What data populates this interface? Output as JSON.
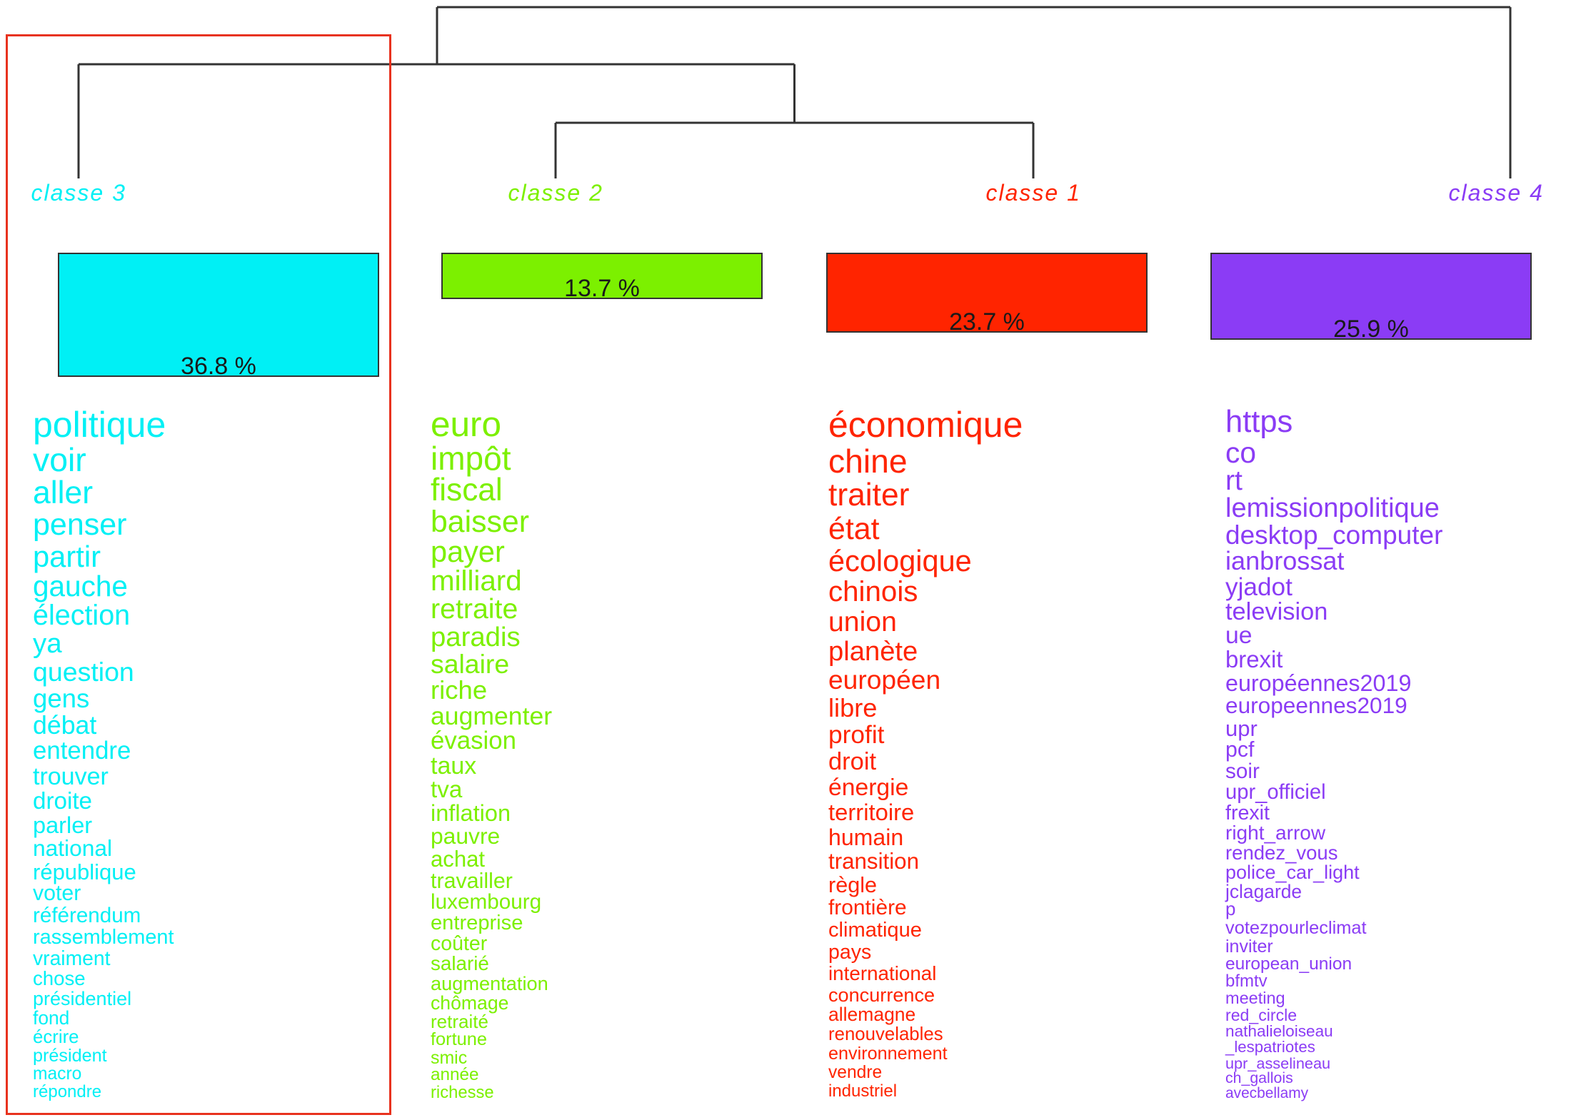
{
  "colors": {
    "classe_3": "#00f0f5",
    "classe_2": "#7cf000",
    "classe_1": "#ff2400",
    "classe_4": "#8b3cf5",
    "tree": "#333333",
    "highlight": "#e8321e"
  },
  "classes": [
    {
      "key": "classe_3",
      "label": "classe  3",
      "percent": 36.8,
      "percent_label": "36.8 %",
      "words": [
        "politique",
        "voir",
        "aller",
        "penser",
        "partir",
        "gauche",
        "élection",
        "ya",
        "question",
        "gens",
        "débat",
        "entendre",
        "trouver",
        "droite",
        "parler",
        "national",
        "république",
        "voter",
        "référendum",
        "rassemblement",
        "vraiment",
        "chose",
        "présidentiel",
        "fond",
        "écrire",
        "président",
        "macro",
        "répondre"
      ]
    },
    {
      "key": "classe_2",
      "label": "classe  2",
      "percent": 13.7,
      "percent_label": "13.7 %",
      "words": [
        "euro",
        "impôt",
        "fiscal",
        "baisser",
        "payer",
        "milliard",
        "retraite",
        "paradis",
        "salaire",
        "riche",
        "augmenter",
        "évasion",
        "taux",
        "tva",
        "inflation",
        "pauvre",
        "achat",
        "travailler",
        "luxembourg",
        "entreprise",
        "coûter",
        "salarié",
        "augmentation",
        "chômage",
        "retraité",
        "fortune",
        "smic",
        "année",
        "richesse"
      ]
    },
    {
      "key": "classe_1",
      "label": "classe  1",
      "percent": 23.7,
      "percent_label": "23.7 %",
      "words": [
        "économique",
        "chine",
        "traiter",
        "état",
        "écologique",
        "chinois",
        "union",
        "planète",
        "européen",
        "libre",
        "profit",
        "droit",
        "énergie",
        "territoire",
        "humain",
        "transition",
        "règle",
        "frontière",
        "climatique",
        "pays",
        "international",
        "concurrence",
        "allemagne",
        "renouvelables",
        "environnement",
        "vendre",
        "industriel"
      ]
    },
    {
      "key": "classe_4",
      "label": "classe  4",
      "percent": 25.9,
      "percent_label": "25.9 %",
      "words": [
        "https",
        "co",
        "rt",
        "lemissionpolitique",
        "desktop_computer",
        "ianbrossat",
        "yjadot",
        "television",
        "ue",
        "brexit",
        "européennes2019",
        "europeennes2019",
        "upr",
        "pcf",
        "soir",
        "upr_officiel",
        "frexit",
        "right_arrow",
        "rendez_vous",
        "police_car_light",
        "jclagarde",
        "p",
        "votezpourleclimat",
        "inviter",
        "european_union",
        "bfmtv",
        "meeting",
        "red_circle",
        "nathalieloiseau",
        "_lespatriotes",
        "upr_asselineau",
        "ch_gallois",
        "avecbellamy"
      ]
    }
  ]
}
